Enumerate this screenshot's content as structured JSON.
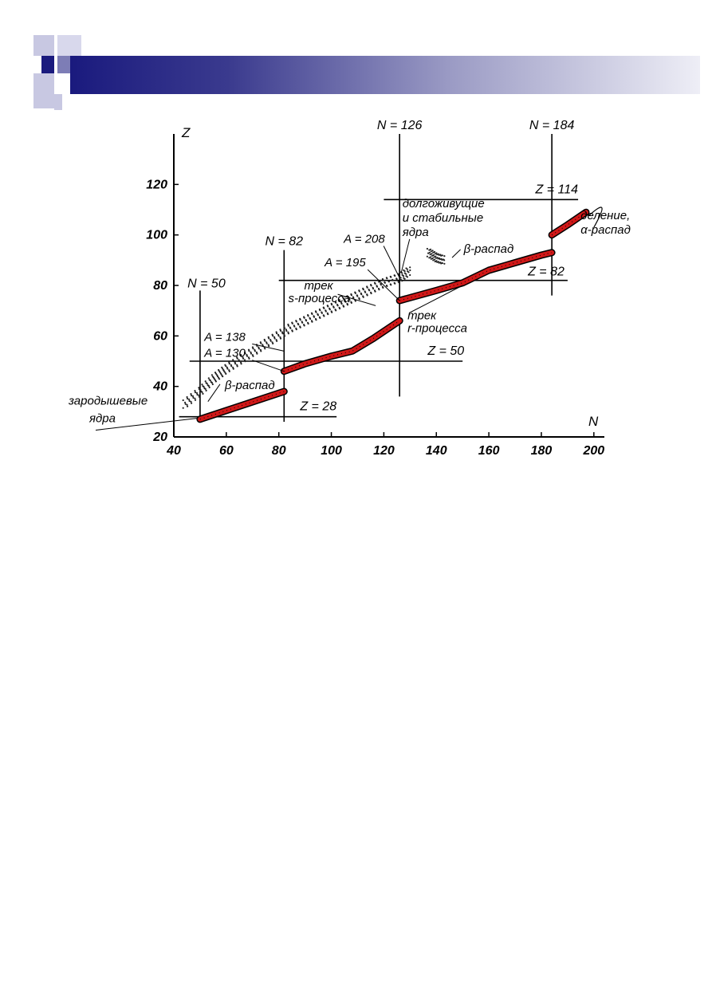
{
  "colors": {
    "band": "#d01818",
    "line": "#000000",
    "header_dark": "#1a1a7e",
    "header_mid": "#7d7db6",
    "header_light": "#c8c8e2"
  },
  "chart_data": {
    "type": "line",
    "title": "",
    "xlabel": "N",
    "ylabel": "Z",
    "xlim": [
      40,
      204
    ],
    "ylim": [
      20,
      140
    ],
    "xticks": [
      "40",
      "60",
      "80",
      "100",
      "120",
      "140",
      "160",
      "180",
      "200"
    ],
    "yticks": [
      "20",
      "40",
      "60",
      "80",
      "100",
      "120"
    ],
    "magic_lines": [
      {
        "label": "N = 50",
        "orient": "v",
        "value": 50,
        "range": [
          26,
          78
        ]
      },
      {
        "label": "N = 82",
        "orient": "v",
        "value": 82,
        "range": [
          26,
          94
        ]
      },
      {
        "label": "N = 126",
        "orient": "v",
        "value": 126,
        "range": [
          36,
          140
        ]
      },
      {
        "label": "N = 184",
        "orient": "v",
        "value": 184,
        "range": [
          76,
          140
        ]
      },
      {
        "label": "Z = 28",
        "orient": "h",
        "value": 28,
        "range": [
          42,
          102
        ]
      },
      {
        "label": "Z = 50",
        "orient": "h",
        "value": 50,
        "range": [
          46,
          150
        ]
      },
      {
        "label": "Z = 82",
        "orient": "h",
        "value": 82,
        "range": [
          80,
          190
        ]
      },
      {
        "label": "Z = 114",
        "orient": "h",
        "value": 114,
        "range": [
          120,
          194
        ]
      }
    ],
    "series": [
      {
        "name": "трек r-процесса",
        "style": "band",
        "segments": [
          [
            [
              50,
              27
            ],
            [
              82,
              38
            ]
          ],
          [
            [
              82,
              46
            ],
            [
              90,
              49
            ],
            [
              100,
              52
            ],
            [
              108,
              54
            ],
            [
              116,
              59
            ],
            [
              126,
              66
            ]
          ],
          [
            [
              126,
              74
            ],
            [
              140,
              78
            ],
            [
              150,
              81
            ],
            [
              160,
              86
            ],
            [
              170,
              89
            ],
            [
              180,
              92
            ],
            [
              184,
              93
            ]
          ],
          [
            [
              184,
              100
            ],
            [
              190,
              104
            ],
            [
              197,
              109
            ]
          ]
        ]
      },
      {
        "name": "трек s-процесса",
        "style": "dotted",
        "points": [
          [
            44,
            33
          ],
          [
            50,
            38
          ],
          [
            55,
            43
          ],
          [
            60,
            47
          ],
          [
            66,
            51
          ],
          [
            72,
            55
          ],
          [
            78,
            59
          ],
          [
            84,
            63
          ],
          [
            90,
            66
          ],
          [
            96,
            69
          ],
          [
            102,
            72
          ],
          [
            108,
            75
          ],
          [
            114,
            78
          ],
          [
            120,
            81
          ],
          [
            126,
            83
          ],
          [
            130,
            86
          ]
        ]
      },
      {
        "name": "долгоживущие и стабильные ядра",
        "style": "dotted",
        "points": [
          [
            137,
            93
          ],
          [
            140,
            91
          ],
          [
            143,
            90
          ]
        ]
      }
    ],
    "annotations": [
      {
        "text": "A = 208",
        "x": 126,
        "y": 83
      },
      {
        "text": "A = 195",
        "x": 126,
        "y": 73
      },
      {
        "text": "A = 138",
        "x": 82,
        "y": 48
      },
      {
        "text": "A = 130",
        "x": 82,
        "y": 46
      },
      {
        "text": "β-распад",
        "x": 57,
        "y": 39
      },
      {
        "text": "β-распад",
        "x": 148,
        "y": 90
      },
      {
        "text": "трек",
        "x": 100,
        "y": 79
      },
      {
        "text": "s-процесса",
        "x": 100,
        "y": 75
      },
      {
        "text": "трек",
        "x": 126,
        "y": 71
      },
      {
        "text": "r-процесса",
        "x": 126,
        "y": 67
      },
      {
        "text": "долгоживущие",
        "x": 128,
        "y": 111
      },
      {
        "text": "и стабильные",
        "x": 128,
        "y": 106
      },
      {
        "text": "ядра",
        "x": 128,
        "y": 101
      },
      {
        "text": "деление,",
        "x": 198,
        "y": 105
      },
      {
        "text": "α-распад",
        "x": 198,
        "y": 100
      },
      {
        "text": "зародышевые",
        "x": 40,
        "y": 34
      },
      {
        "text": "ядра",
        "x": 40,
        "y": 29
      }
    ]
  }
}
